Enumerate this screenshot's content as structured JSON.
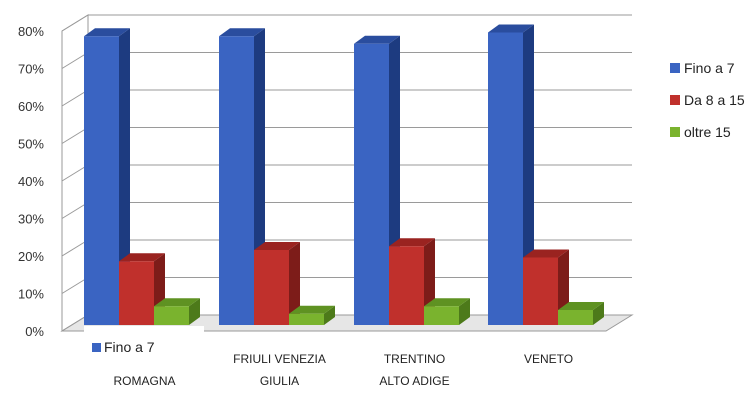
{
  "chart_data": {
    "type": "bar",
    "categories": [
      [
        "",
        "ROMAGNA"
      ],
      [
        "FRIULI VENEZIA",
        "GIULIA"
      ],
      [
        "TRENTINO",
        "ALTO ADIGE"
      ],
      [
        "VENETO",
        ""
      ]
    ],
    "series": [
      {
        "name": "Fino a 7",
        "values": [
          77,
          77,
          75,
          78
        ]
      },
      {
        "name": "Da 8 a 15",
        "values": [
          17,
          20,
          21,
          18
        ]
      },
      {
        "name": "oltre 15",
        "values": [
          5,
          3,
          5,
          4
        ]
      }
    ],
    "y_ticks": [
      "0%",
      "10%",
      "20%",
      "30%",
      "40%",
      "50%",
      "60%",
      "70%",
      "80%"
    ],
    "ylim": [
      0,
      80
    ],
    "y_unit": "%",
    "grid": true,
    "legend_position": "right",
    "overlay_legend_label": "Fino a 7",
    "colors": {
      "series": [
        "#3a64c2",
        "#c0302c",
        "#7ab32e"
      ],
      "series_side": [
        "#1d3b80",
        "#7d1c19",
        "#4d7a1a"
      ],
      "series_top": [
        "#2a4d9e",
        "#9a2320",
        "#5f9222"
      ],
      "grid": "#9a9a9a",
      "wall": "#ffffff",
      "floor": "#e6e6e6"
    }
  }
}
